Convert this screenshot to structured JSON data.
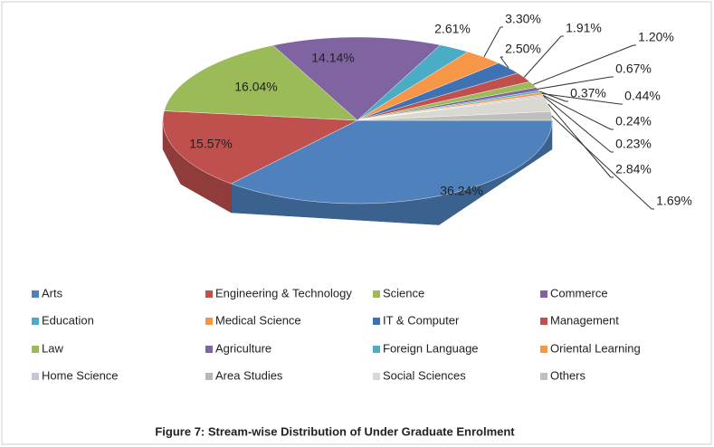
{
  "chart_data": {
    "type": "pie",
    "title": "Figure 7: Stream-wise Distribution of Under Graduate Enrolment",
    "categories": [
      "Arts",
      "Engineering & Technology",
      "Science",
      "Commerce",
      "Education",
      "Medical Science",
      "IT & Computer",
      "Management",
      "Law",
      "Agriculture",
      "Foreign Language",
      "Oriental Learning",
      "Home Science",
      "Area Studies",
      "Social Sciences",
      "Others"
    ],
    "values": [
      36.24,
      15.57,
      16.04,
      14.14,
      2.61,
      3.3,
      2.5,
      1.91,
      1.2,
      0.67,
      0.37,
      0.44,
      0.24,
      0.23,
      2.84,
      1.69
    ],
    "value_labels": [
      "36.24%",
      "15.57%",
      "16.04%",
      "14.14%",
      "2.61%",
      "3.30%",
      "2.50%",
      "1.91%",
      "1.20%",
      "0.67%",
      "0.37%",
      "0.44%",
      "0.24%",
      "0.23%",
      "2.84%",
      "1.69%"
    ],
    "colors": [
      "#4F81BD",
      "#C0504D",
      "#9BBB59",
      "#8064A2",
      "#4BACC6",
      "#F79646",
      "#3F72B5",
      "#C0504D",
      "#9BBB59",
      "#8064A2",
      "#4BACC6",
      "#F79646",
      "#C9C3D6",
      "#B7B7B7",
      "#D9D9D2",
      "#BFBFBF"
    ],
    "legend": "bottom"
  }
}
